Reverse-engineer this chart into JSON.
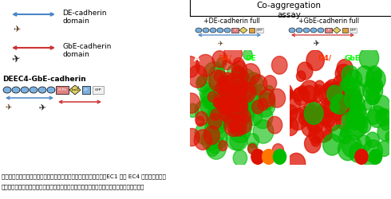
{
  "title_line1": "図５．キメラのカドヘリンを発現する細胞を用いた細胞集合実験．",
  "title_line2_part1": "EC1 から EC4 までがショウジ",
  "caption_line2": "ョウバエに由来するキメラ分子はショウジョウバエ型の接着特異性を示すことが分かった。",
  "label_de_cadherin": "DE-cadherin\ndomain",
  "label_gbe_cadherin": "GbE-cadherin\ndomain",
  "label_deec4": "DEEC4-GbE-cadherin",
  "label_coagg": "Co-aggregation\nassay",
  "label_plus_de": "+DE-cadherin full",
  "label_plus_gbe": "+GbE-cadherin full",
  "bg_color": "#ffffff",
  "text_color": "#000000",
  "blue_arrow": "#4a86c8",
  "red_arrow": "#cc3333",
  "domain_blue": "#7ab0e0",
  "domain_pink": "#e08080",
  "domain_green_diamond": "#80c060",
  "domain_yellow": "#e0d060",
  "domain_orange": "#e0a040",
  "domain_gfp": "#e8e8e8",
  "text_red": "#ff2200",
  "text_green": "#00dd00"
}
